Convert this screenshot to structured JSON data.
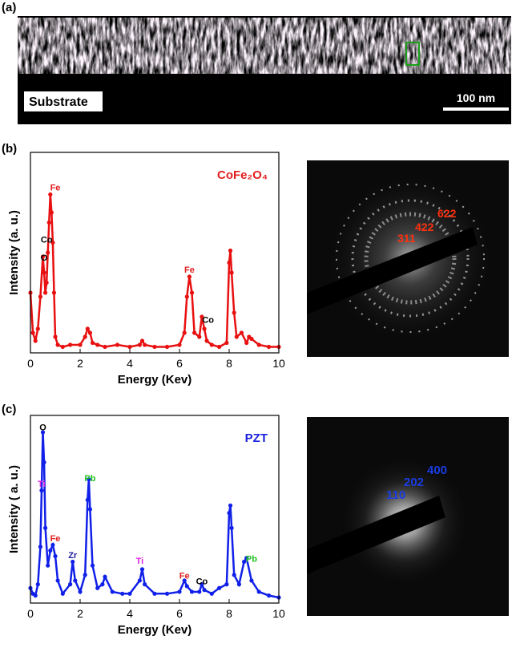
{
  "figure": {
    "panel_a": {
      "label": "(a)",
      "substrate": "Substrate",
      "scale_bar": "100 nm"
    },
    "panel_b": {
      "label": "(b)",
      "pattern_labels": [
        "311",
        "422",
        "622"
      ]
    },
    "panel_c": {
      "label": "(c)",
      "pattern_labels": [
        "110",
        "202",
        "400"
      ]
    }
  },
  "chart_data": [
    {
      "type": "scatter",
      "title": "CoFe₂O₄",
      "title_color": "#e0201f",
      "x_label": "Energy (Kev)",
      "y_label": "Intensity (a. u.)",
      "xlim": [
        0,
        10
      ],
      "ylim": [
        0,
        100
      ],
      "xticks": [
        0,
        2,
        4,
        6,
        8,
        10
      ],
      "series": [
        {
          "name": "CoFe₂O₄",
          "color": "#e81010",
          "x": [
            0,
            0.1,
            0.2,
            0.3,
            0.4,
            0.5,
            0.55,
            0.6,
            0.65,
            0.7,
            0.75,
            0.8,
            0.85,
            0.9,
            0.95,
            1.0,
            1.1,
            1.3,
            1.6,
            2.0,
            2.2,
            2.3,
            2.4,
            2.5,
            2.7,
            3.0,
            3.5,
            4.0,
            4.4,
            4.5,
            4.6,
            5.0,
            5.5,
            6.0,
            6.2,
            6.3,
            6.4,
            6.5,
            6.6,
            6.8,
            6.9,
            7.0,
            7.1,
            7.3,
            7.6,
            7.9,
            8.0,
            8.05,
            8.1,
            8.2,
            8.3,
            8.5,
            8.7,
            8.8,
            8.9,
            9.2,
            9.6,
            10.0
          ],
          "values": [
            30,
            10,
            6,
            12,
            28,
            48,
            40,
            30,
            35,
            50,
            65,
            79,
            70,
            55,
            30,
            8,
            4,
            3,
            4,
            4,
            8,
            12,
            10,
            5,
            4,
            3,
            4,
            3,
            4,
            6,
            4,
            3,
            3,
            4,
            10,
            28,
            38,
            30,
            10,
            8,
            18,
            12,
            6,
            4,
            3,
            5,
            45,
            51,
            40,
            20,
            8,
            10,
            5,
            8,
            7,
            4,
            3,
            3
          ]
        }
      ],
      "annotations": [
        {
          "text": "Fe",
          "x": 1.0,
          "y": 81,
          "color": "#e0201f"
        },
        {
          "text": "Co",
          "x": 0.65,
          "y": 55,
          "color": "#000000"
        },
        {
          "text": "O",
          "x": 0.55,
          "y": 46,
          "color": "#000000"
        },
        {
          "text": "Fe",
          "x": 6.4,
          "y": 40,
          "color": "#e0201f"
        },
        {
          "text": "Co",
          "x": 7.15,
          "y": 15,
          "color": "#000000"
        }
      ]
    },
    {
      "type": "scatter",
      "title": "PZT",
      "title_color": "#1a20e0",
      "x_label": "Energy (Kev)",
      "y_label": "Intensity ( a. u.)",
      "xlim": [
        0,
        10
      ],
      "ylim": [
        0,
        100
      ],
      "xticks": [
        0,
        2,
        4,
        6,
        8,
        10
      ],
      "series": [
        {
          "name": "PZT",
          "color": "#1020e8",
          "x": [
            0,
            0.1,
            0.2,
            0.3,
            0.4,
            0.45,
            0.5,
            0.55,
            0.6,
            0.7,
            0.8,
            0.9,
            1.0,
            1.1,
            1.3,
            1.6,
            1.7,
            1.8,
            2.0,
            2.2,
            2.3,
            2.35,
            2.4,
            2.5,
            2.7,
            2.9,
            3.0,
            3.3,
            3.7,
            4.0,
            4.4,
            4.5,
            4.6,
            5.0,
            5.5,
            6.0,
            6.2,
            6.3,
            6.5,
            6.8,
            6.9,
            7.0,
            7.3,
            7.6,
            7.9,
            8.0,
            8.05,
            8.1,
            8.2,
            8.4,
            8.6,
            8.7,
            8.9,
            9.2,
            9.6,
            10.0
          ],
          "values": [
            8,
            5,
            4,
            10,
            30,
            60,
            91,
            75,
            40,
            20,
            28,
            31,
            25,
            12,
            5,
            10,
            22,
            12,
            6,
            15,
            55,
            66,
            50,
            20,
            8,
            10,
            14,
            6,
            5,
            5,
            12,
            18,
            10,
            5,
            5,
            6,
            12,
            9,
            6,
            6,
            10,
            7,
            5,
            8,
            10,
            48,
            52,
            40,
            15,
            10,
            22,
            24,
            12,
            6,
            4,
            3
          ]
        }
      ],
      "annotations": [
        {
          "text": "O",
          "x": 0.5,
          "y": 92,
          "color": "#000000"
        },
        {
          "text": "Ti",
          "x": 0.45,
          "y": 62,
          "color": "#e020e0"
        },
        {
          "text": "Pb",
          "x": 2.4,
          "y": 65,
          "color": "#20c020"
        },
        {
          "text": "Fe",
          "x": 1.0,
          "y": 33,
          "color": "#e0201f"
        },
        {
          "text": "Zr",
          "x": 1.7,
          "y": 24,
          "color": "#2020a0"
        },
        {
          "text": "Ti",
          "x": 4.4,
          "y": 21,
          "color": "#e020e0"
        },
        {
          "text": "Fe",
          "x": 6.2,
          "y": 13,
          "color": "#e0201f"
        },
        {
          "text": "Co",
          "x": 6.9,
          "y": 10,
          "color": "#000000"
        },
        {
          "text": "Pb",
          "x": 8.9,
          "y": 22,
          "color": "#20c020"
        }
      ]
    }
  ]
}
